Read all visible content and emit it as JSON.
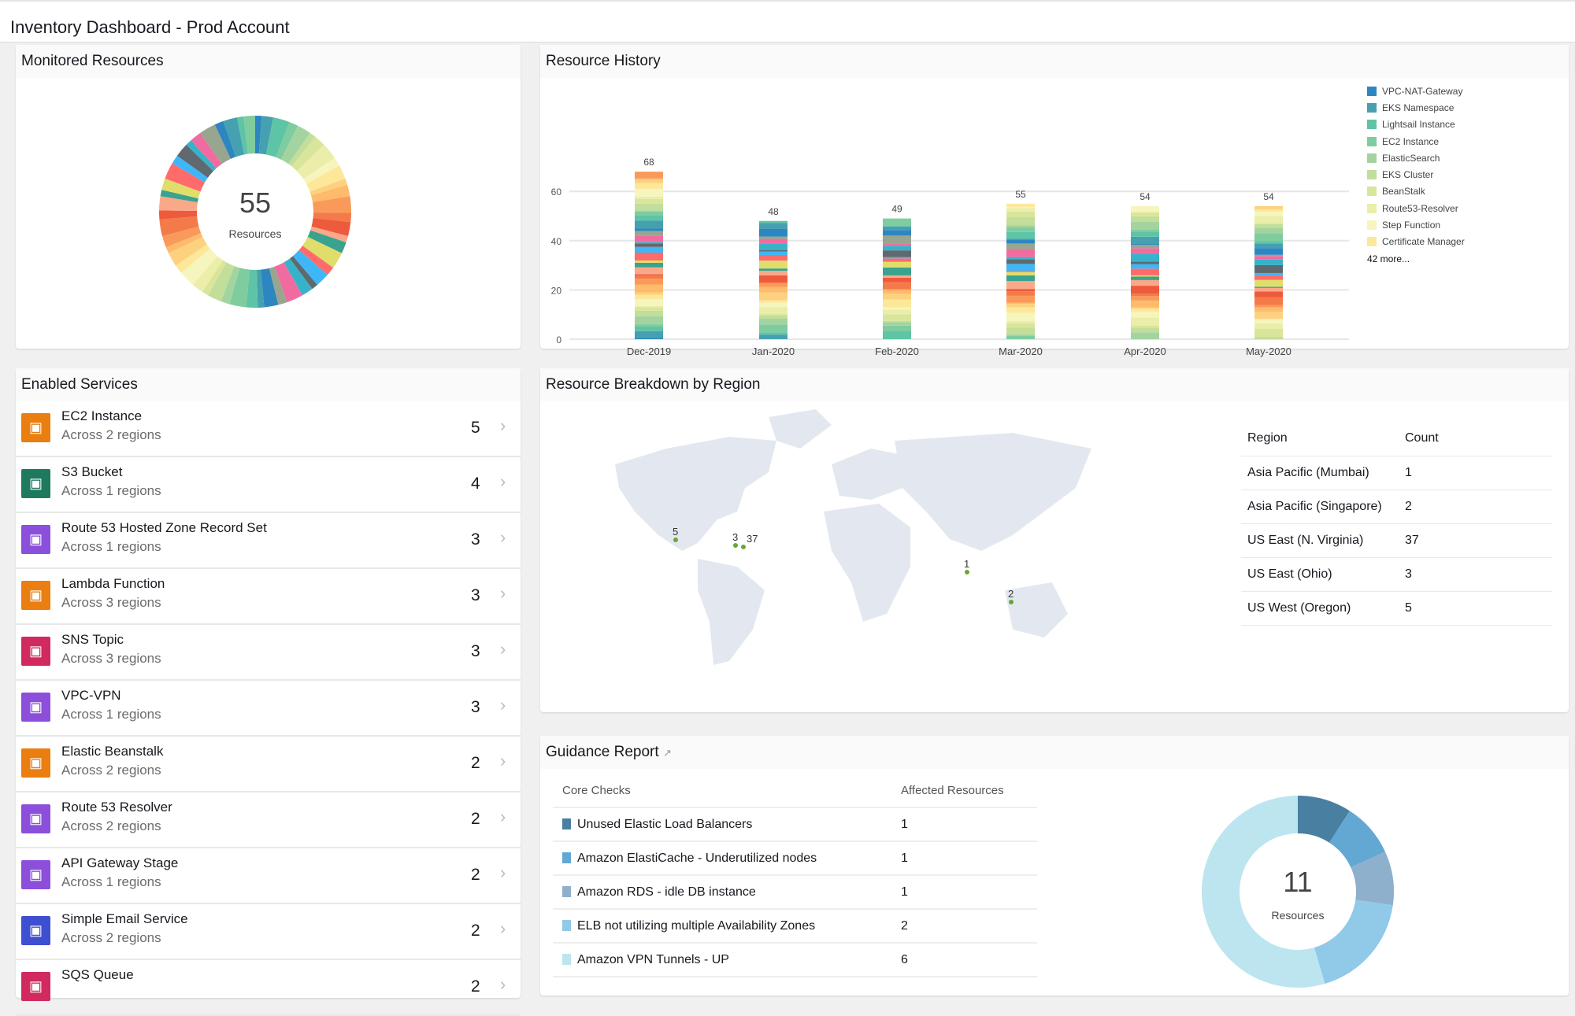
{
  "header": {
    "title": "Inventory Dashboard - Prod Account"
  },
  "monitored": {
    "title": "Monitored Resources",
    "total": "55",
    "label": "Resources"
  },
  "history": {
    "title": "Resource History"
  },
  "chart_data": {
    "type": "bar",
    "stacked": true,
    "categories": [
      "Dec-2019",
      "Jan-2020",
      "Feb-2020",
      "Mar-2020",
      "Apr-2020",
      "May-2020"
    ],
    "totals": [
      68,
      48,
      49,
      55,
      54,
      54
    ],
    "ylim": [
      0,
      70
    ],
    "yticks": [
      0,
      20,
      40,
      60
    ],
    "grid": true,
    "legend_position": "right",
    "legend": [
      "VPC-NAT-Gateway",
      "EKS Namespace",
      "Lightsail Instance",
      "EC2 Instance",
      "ElasticSearch",
      "EKS Cluster",
      "BeanStalk",
      "Route53-Resolver",
      "Step Function",
      "Certificate Manager"
    ],
    "legend_colors": [
      "#2e86c1",
      "#45a0b0",
      "#5ec4a6",
      "#7fcc9f",
      "#a3d4a0",
      "#c3de9a",
      "#d9e59a",
      "#eaeea8",
      "#f6f5bd",
      "#fde89a"
    ],
    "legend_more": "42 more..."
  },
  "services": {
    "title": "Enabled Services",
    "items": [
      {
        "name": "EC2 Instance",
        "sub": "Across 2 regions",
        "count": "5",
        "icon": "ec2-icon",
        "color": "#ea7e10"
      },
      {
        "name": "S3 Bucket",
        "sub": "Across 1 regions",
        "count": "4",
        "icon": "s3-bucket-icon",
        "color": "#1e7a5e"
      },
      {
        "name": "Route 53 Hosted Zone Record Set",
        "sub": "Across 1 regions",
        "count": "3",
        "icon": "route53-icon",
        "color": "#8c4fdc"
      },
      {
        "name": "Lambda Function",
        "sub": "Across 3 regions",
        "count": "3",
        "icon": "lambda-icon",
        "color": "#ea7e10"
      },
      {
        "name": "SNS Topic",
        "sub": "Across 3 regions",
        "count": "3",
        "icon": "sns-icon",
        "color": "#d12a5f"
      },
      {
        "name": "VPC-VPN",
        "sub": "Across 1 regions",
        "count": "3",
        "icon": "vpn-icon",
        "color": "#8c4fdc"
      },
      {
        "name": "Elastic Beanstalk",
        "sub": "Across 2 regions",
        "count": "2",
        "icon": "beanstalk-icon",
        "color": "#ea7e10"
      },
      {
        "name": "Route 53 Resolver",
        "sub": "Across 2 regions",
        "count": "2",
        "icon": "route53-resolver-icon",
        "color": "#8c4fdc"
      },
      {
        "name": "API Gateway Stage",
        "sub": "Across 1 regions",
        "count": "2",
        "icon": "api-gateway-icon",
        "color": "#8c4fdc"
      },
      {
        "name": "Simple Email Service",
        "sub": "Across 2 regions",
        "count": "2",
        "icon": "ses-icon",
        "color": "#3f4fd1"
      },
      {
        "name": "SQS Queue",
        "sub": "",
        "count": "2",
        "icon": "sqs-icon",
        "color": "#d12a5f"
      }
    ]
  },
  "regions": {
    "title": "Resource Breakdown by Region",
    "col_region": "Region",
    "col_count": "Count",
    "rows": [
      {
        "region": "Asia Pacific (Mumbai)",
        "count": "1"
      },
      {
        "region": "Asia Pacific (Singapore)",
        "count": "2"
      },
      {
        "region": "US East (N. Virginia)",
        "count": "37"
      },
      {
        "region": "US East (Ohio)",
        "count": "3"
      },
      {
        "region": "US West (Oregon)",
        "count": "5"
      }
    ],
    "map_labels": [
      "5",
      "3",
      "37",
      "1",
      "2"
    ]
  },
  "guidance": {
    "title": "Guidance Report",
    "col_check": "Core Checks",
    "col_affected": "Affected Resources",
    "total": "11",
    "label": "Resources",
    "rows": [
      {
        "check": "Unused Elastic Load Balancers",
        "count": "1",
        "color": "#497fa0"
      },
      {
        "check": "Amazon ElastiCache - Underutilized nodes",
        "count": "1",
        "color": "#62a8d2"
      },
      {
        "check": "Amazon RDS - idle DB instance",
        "count": "1",
        "color": "#8fb0cc"
      },
      {
        "check": "ELB not utilizing multiple Availability Zones",
        "count": "2",
        "color": "#91c9e8"
      },
      {
        "check": "Amazon VPN Tunnels - UP",
        "count": "6",
        "color": "#bde5ef"
      }
    ]
  }
}
